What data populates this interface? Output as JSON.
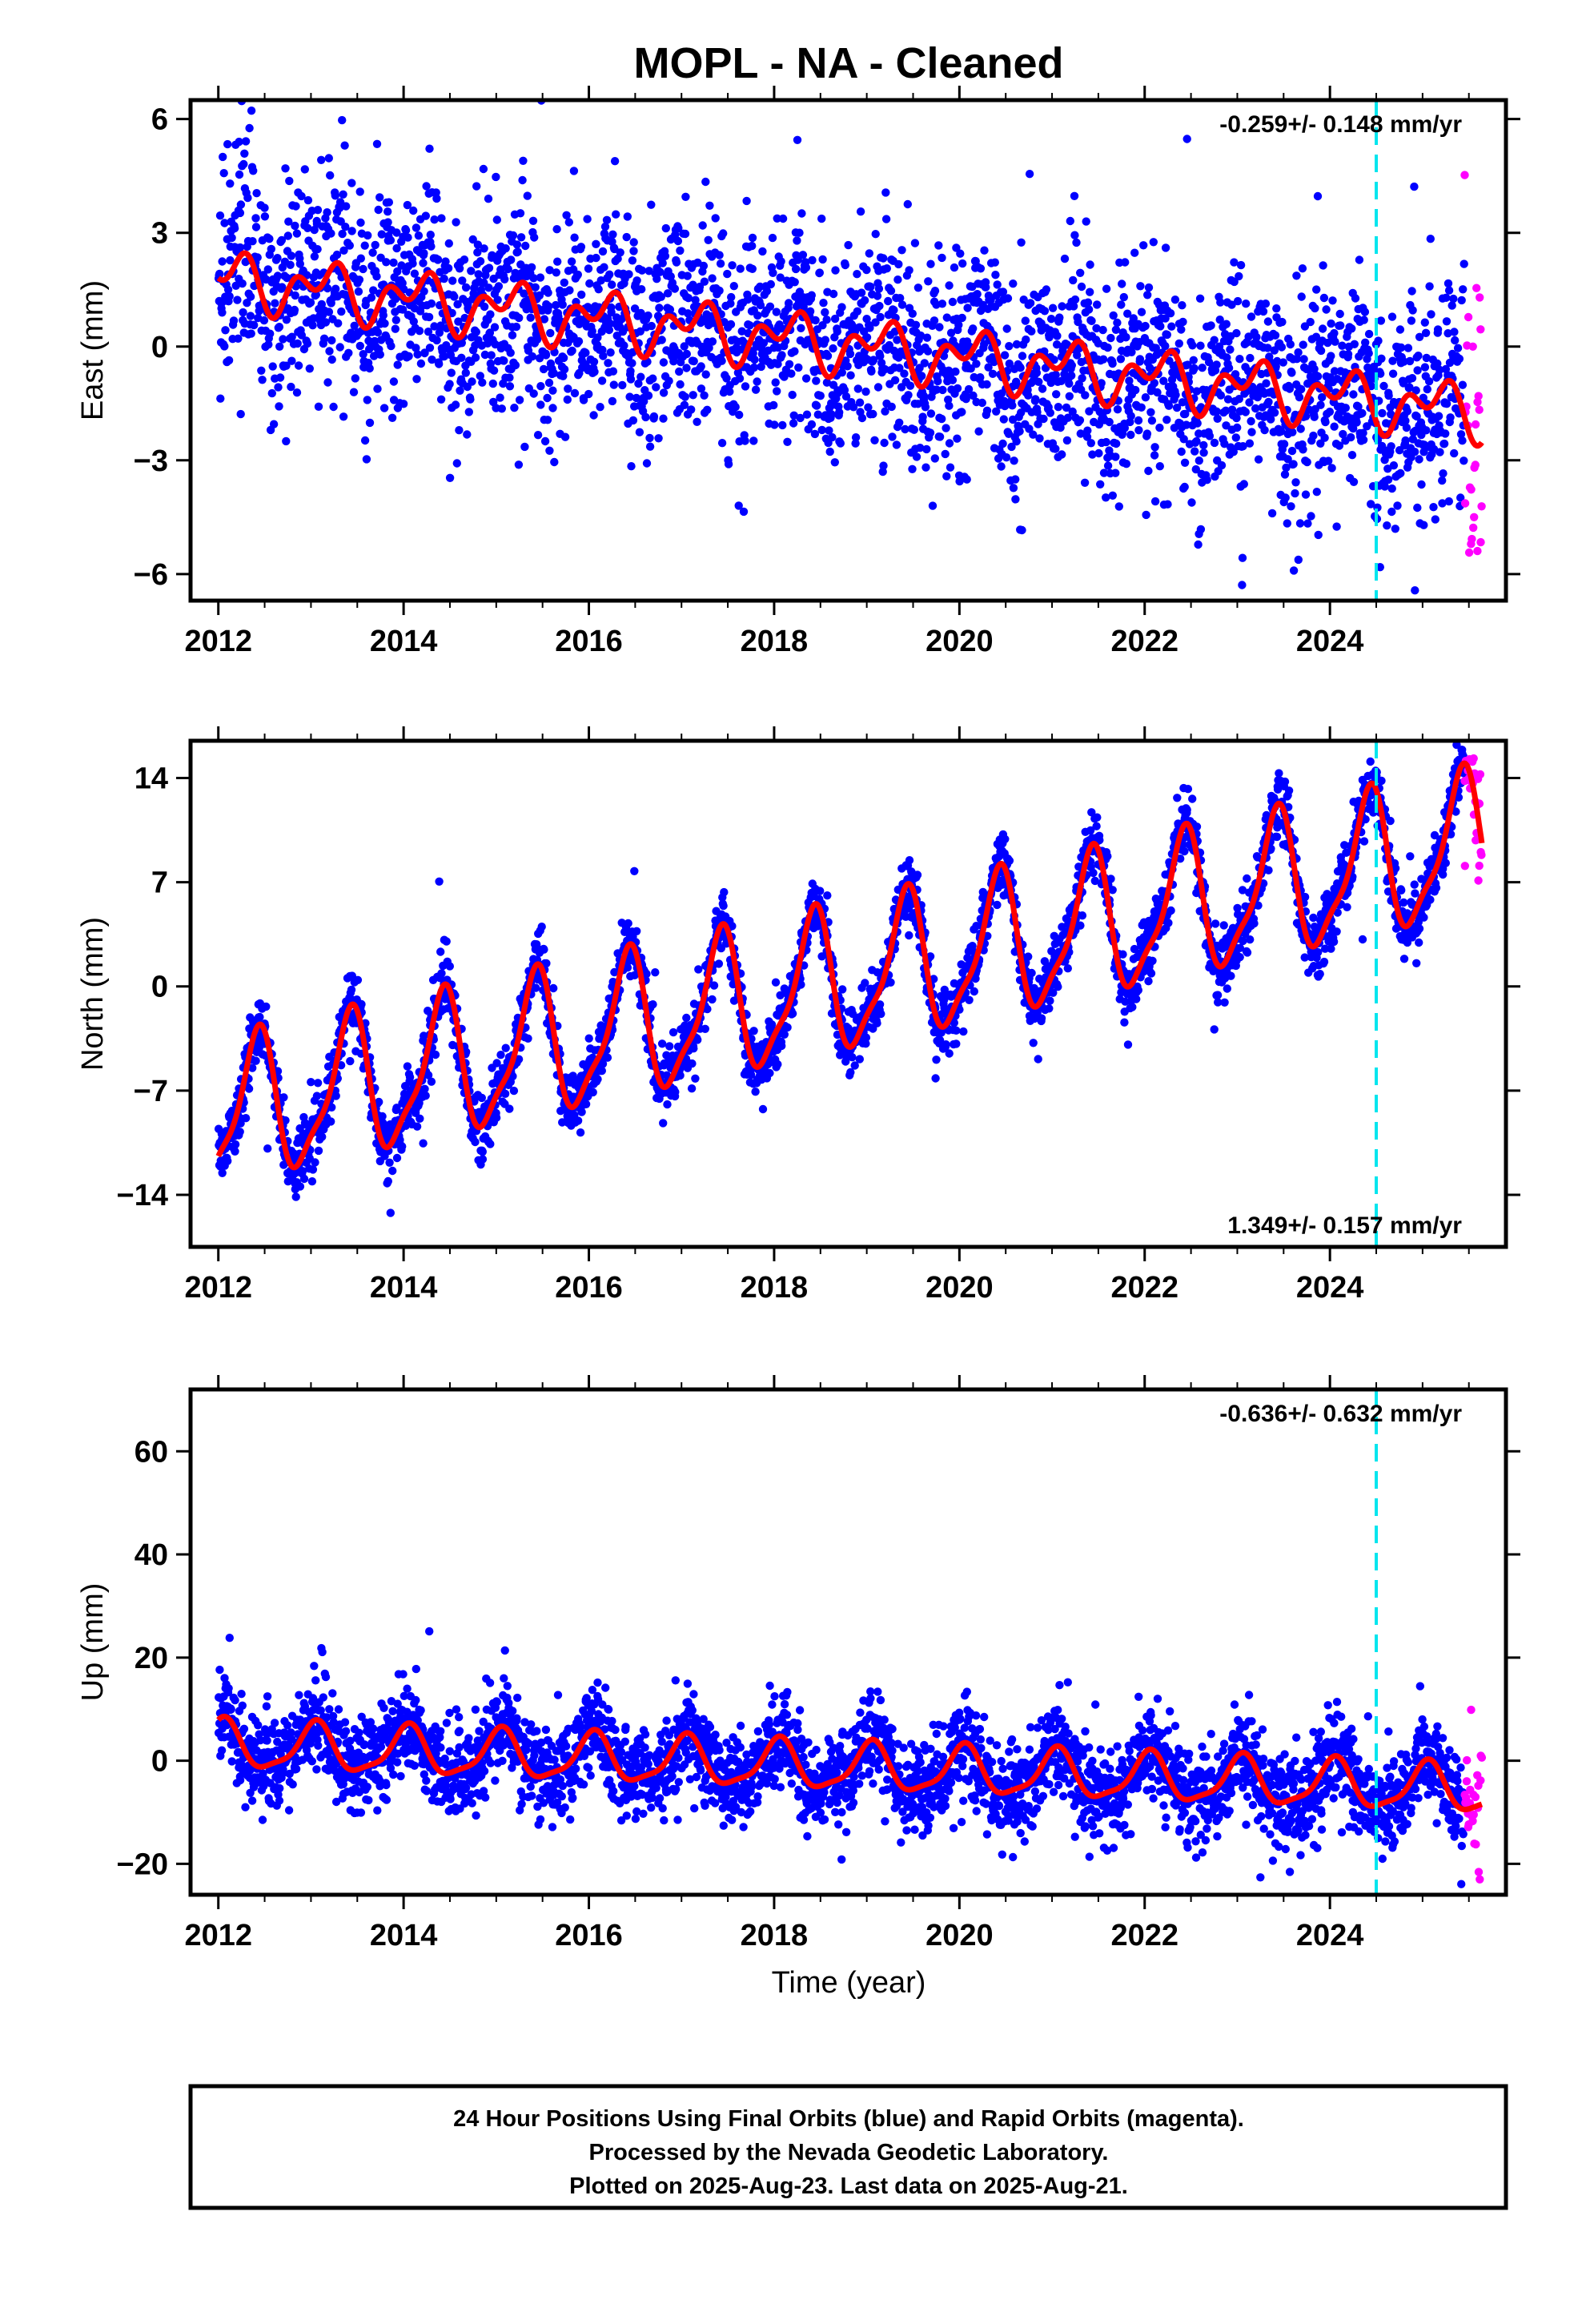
{
  "title": "MOPL  - NA - Cleaned",
  "footer": {
    "line1": "24 Hour Positions Using Final Orbits (blue) and Rapid Orbits (magenta).",
    "line2": "Processed by the Nevada Geodetic Laboratory.",
    "line3": "Plotted on 2025-Aug-23. Last data on 2025-Aug-21."
  },
  "colors": {
    "final": "#0000ff",
    "rapid": "#ff00ff",
    "model": "#ff0000",
    "event": "#00e5ee"
  },
  "chart_data": [
    {
      "type": "scatter",
      "ylabel": "East (mm)",
      "xlabel": "",
      "xlim": [
        2011.7,
        2025.9
      ],
      "ylim": [
        -6.7,
        6.5
      ],
      "x_ticks": [
        2012,
        2014,
        2016,
        2018,
        2020,
        2022,
        2024
      ],
      "x_tick_labels": [
        "2012",
        "2014",
        "2016",
        "2018",
        "2020",
        "2022",
        "2024"
      ],
      "y_ticks": [
        6,
        3,
        0,
        -3,
        -6
      ],
      "y_tick_labels": [
        "6",
        "3",
        "0",
        "−3",
        "−6"
      ],
      "rate_label": "-0.259+/- 0.148 mm/yr",
      "rate_position": "top-right",
      "event_line_x": 2024.5,
      "model": {
        "offset": 1.8,
        "trend": -0.259,
        "annual_amp": 0.5,
        "annual_phase": 0.6,
        "semiannual_amp": 0.45,
        "semiannual_phase": 3.8
      },
      "series": [
        {
          "name": "Final Orbits",
          "x_range": [
            2012.0,
            2025.45
          ],
          "scatter": 1.4,
          "color": "blue"
        },
        {
          "name": "Rapid Orbits",
          "x_range": [
            2025.45,
            2025.64
          ],
          "scatter": 2.3,
          "color": "magenta"
        }
      ]
    },
    {
      "type": "scatter",
      "ylabel": "North (mm)",
      "xlabel": "",
      "xlim": [
        2011.7,
        2025.9
      ],
      "ylim": [
        -17.5,
        16.5
      ],
      "x_ticks": [
        2012,
        2014,
        2016,
        2018,
        2020,
        2022,
        2024
      ],
      "x_tick_labels": [
        "2012",
        "2014",
        "2016",
        "2018",
        "2020",
        "2022",
        "2024"
      ],
      "y_ticks": [
        14,
        7,
        0,
        -7,
        -14
      ],
      "y_tick_labels": [
        "14",
        "7",
        "0",
        "−7",
        "−14"
      ],
      "rate_label": "1.349+/- 0.157 mm/yr",
      "rate_position": "bottom-right",
      "event_line_x": 2024.5,
      "model": {
        "offset": -8.8,
        "trend": 1.349,
        "annual_amp": 4.6,
        "annual_phase": -1.0,
        "semiannual_amp": 1.3,
        "semiannual_phase": 1.8
      },
      "series": [
        {
          "name": "Final Orbits",
          "x_range": [
            2012.0,
            2025.45
          ],
          "scatter": 1.1,
          "color": "blue"
        },
        {
          "name": "Rapid Orbits",
          "x_range": [
            2025.45,
            2025.64
          ],
          "scatter": 2.4,
          "color": "magenta"
        }
      ]
    },
    {
      "type": "scatter",
      "ylabel": "Up (mm)",
      "xlabel": "Time (year)",
      "xlim": [
        2011.7,
        2025.9
      ],
      "ylim": [
        -26,
        72
      ],
      "x_ticks": [
        2012,
        2014,
        2016,
        2018,
        2020,
        2022,
        2024
      ],
      "x_tick_labels": [
        "2012",
        "2014",
        "2016",
        "2018",
        "2020",
        "2022",
        "2024"
      ],
      "y_ticks": [
        60,
        40,
        20,
        0,
        -20
      ],
      "y_tick_labels": [
        "60",
        "40",
        "20",
        "0",
        "−20"
      ],
      "rate_label": "-0.636+/- 0.632 mm/yr",
      "rate_position": "top-right",
      "event_line_x": 2024.5,
      "model": {
        "offset": 3.0,
        "trend": -0.636,
        "annual_amp": 4.5,
        "annual_phase": 1.3,
        "semiannual_amp": 1.2,
        "semiannual_phase": 0.5
      },
      "series": [
        {
          "name": "Final Orbits",
          "x_range": [
            2012.0,
            2025.45
          ],
          "scatter": 4.5,
          "color": "blue"
        },
        {
          "name": "Rapid Orbits",
          "x_range": [
            2025.45,
            2025.64
          ],
          "scatter": 8.0,
          "color": "magenta"
        }
      ]
    }
  ]
}
